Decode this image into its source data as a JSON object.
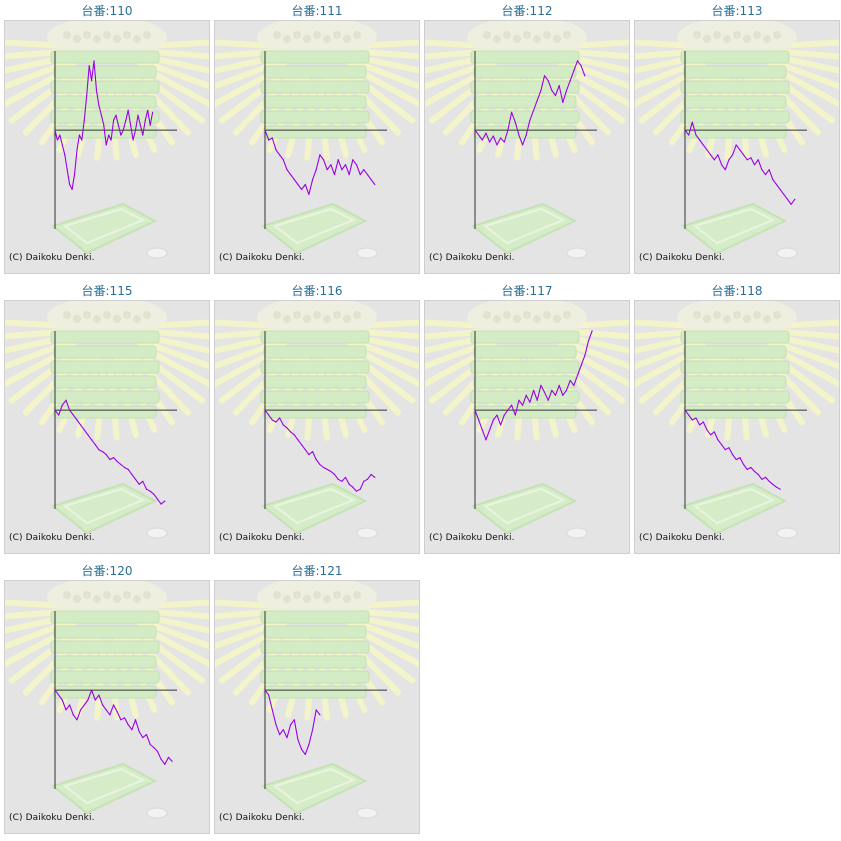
{
  "page": {
    "title_prefix": "台番:"
  },
  "chart_data": [
    {
      "type": "line",
      "title": "台番:110",
      "machine": "110",
      "copyright": "(C) Daikoku Denki.",
      "color": "#9a00e6",
      "xlim": [
        0,
        100
      ],
      "ylim": [
        -100,
        80
      ],
      "x": [
        0,
        2,
        4,
        6,
        8,
        10,
        12,
        14,
        16,
        18,
        20,
        22,
        24,
        26,
        28,
        30,
        32,
        34,
        36,
        38,
        40,
        42,
        44,
        46,
        48,
        50,
        52,
        54,
        56,
        58,
        60,
        62,
        64,
        66,
        68,
        70,
        72,
        74,
        76,
        78,
        80
      ],
      "y": [
        0,
        -10,
        -5,
        -15,
        -25,
        -40,
        -55,
        -60,
        -45,
        -20,
        -5,
        -10,
        10,
        35,
        65,
        50,
        70,
        40,
        25,
        15,
        5,
        -15,
        -5,
        -10,
        10,
        15,
        5,
        -5,
        0,
        10,
        20,
        5,
        -10,
        0,
        15,
        5,
        -5,
        10,
        20,
        5,
        18
      ]
    },
    {
      "type": "line",
      "title": "台番:111",
      "machine": "111",
      "copyright": "(C) Daikoku Denki.",
      "color": "#9a00e6",
      "xlim": [
        0,
        100
      ],
      "ylim": [
        -100,
        80
      ],
      "x": [
        0,
        3,
        6,
        9,
        12,
        15,
        18,
        21,
        24,
        27,
        30,
        33,
        36,
        39,
        42,
        45,
        48,
        51,
        54,
        57,
        60,
        63,
        66,
        69,
        72,
        75,
        78,
        81,
        84,
        87,
        90
      ],
      "y": [
        0,
        -10,
        -8,
        -20,
        -25,
        -30,
        -40,
        -45,
        -50,
        -55,
        -60,
        -55,
        -65,
        -50,
        -40,
        -25,
        -30,
        -40,
        -35,
        -45,
        -30,
        -40,
        -35,
        -45,
        -30,
        -35,
        -45,
        -40,
        -45,
        -50,
        -55
      ]
    },
    {
      "type": "line",
      "title": "台番:112",
      "machine": "112",
      "copyright": "(C) Daikoku Denki.",
      "color": "#9a00e6",
      "xlim": [
        0,
        100
      ],
      "ylim": [
        -100,
        80
      ],
      "x": [
        0,
        3,
        6,
        9,
        12,
        15,
        18,
        21,
        24,
        27,
        30,
        33,
        36,
        39,
        42,
        45,
        48,
        51,
        54,
        57,
        60,
        63,
        66,
        69,
        72,
        75,
        78,
        81,
        84,
        87,
        90
      ],
      "y": [
        0,
        -5,
        -10,
        -3,
        -12,
        -6,
        -15,
        -8,
        -12,
        0,
        18,
        8,
        -5,
        -15,
        -5,
        10,
        20,
        30,
        40,
        55,
        50,
        40,
        35,
        45,
        28,
        40,
        50,
        60,
        70,
        65,
        55
      ]
    },
    {
      "type": "line",
      "title": "台番:113",
      "machine": "113",
      "copyright": "(C) Daikoku Denki.",
      "color": "#9a00e6",
      "xlim": [
        0,
        100
      ],
      "ylim": [
        -100,
        80
      ],
      "x": [
        0,
        3,
        6,
        9,
        12,
        15,
        18,
        21,
        24,
        27,
        30,
        33,
        36,
        39,
        42,
        45,
        48,
        51,
        54,
        57,
        60,
        63,
        66,
        69,
        72,
        75,
        78,
        81,
        84,
        87,
        90
      ],
      "y": [
        0,
        -5,
        8,
        -5,
        -10,
        -15,
        -20,
        -25,
        -30,
        -25,
        -35,
        -40,
        -30,
        -25,
        -15,
        -20,
        -25,
        -30,
        -28,
        -35,
        -30,
        -40,
        -45,
        -40,
        -50,
        -55,
        -60,
        -65,
        -70,
        -75,
        -70
      ]
    },
    {
      "type": "line",
      "title": "台番:115",
      "machine": "115",
      "copyright": "(C) Daikoku Denki.",
      "color": "#9a00e6",
      "xlim": [
        0,
        100
      ],
      "ylim": [
        -100,
        80
      ],
      "x": [
        0,
        3,
        6,
        9,
        12,
        15,
        18,
        21,
        24,
        27,
        30,
        33,
        36,
        39,
        42,
        45,
        48,
        51,
        54,
        57,
        60,
        63,
        66,
        69,
        72,
        75,
        78,
        81,
        84,
        87,
        90
      ],
      "y": [
        0,
        -5,
        5,
        10,
        0,
        -5,
        -10,
        -15,
        -20,
        -25,
        -30,
        -35,
        -40,
        -42,
        -45,
        -50,
        -48,
        -52,
        -55,
        -58,
        -60,
        -65,
        -70,
        -75,
        -72,
        -80,
        -82,
        -85,
        -90,
        -95,
        -92
      ]
    },
    {
      "type": "line",
      "title": "台番:116",
      "machine": "116",
      "copyright": "(C) Daikoku Denki.",
      "color": "#9a00e6",
      "xlim": [
        0,
        100
      ],
      "ylim": [
        -100,
        80
      ],
      "x": [
        0,
        3,
        6,
        9,
        12,
        15,
        18,
        21,
        24,
        27,
        30,
        33,
        36,
        39,
        42,
        45,
        48,
        51,
        54,
        57,
        60,
        63,
        66,
        69,
        72,
        75,
        78,
        81,
        84,
        87,
        90
      ],
      "y": [
        0,
        -5,
        -10,
        -12,
        -8,
        -15,
        -18,
        -22,
        -25,
        -30,
        -35,
        -40,
        -45,
        -42,
        -50,
        -55,
        -58,
        -60,
        -62,
        -65,
        -70,
        -72,
        -68,
        -75,
        -78,
        -82,
        -80,
        -72,
        -70,
        -65,
        -68
      ]
    },
    {
      "type": "line",
      "title": "台番:117",
      "machine": "117",
      "copyright": "(C) Daikoku Denki.",
      "color": "#9a00e6",
      "xlim": [
        0,
        100
      ],
      "ylim": [
        -100,
        80
      ],
      "x": [
        0,
        3,
        6,
        9,
        12,
        15,
        18,
        21,
        24,
        27,
        30,
        33,
        36,
        39,
        42,
        45,
        48,
        51,
        54,
        57,
        60,
        63,
        66,
        69,
        72,
        75,
        78,
        81,
        84,
        87,
        90,
        93,
        96
      ],
      "y": [
        0,
        -10,
        -20,
        -30,
        -20,
        -10,
        -5,
        -15,
        -5,
        0,
        5,
        -5,
        10,
        5,
        15,
        8,
        20,
        10,
        25,
        18,
        10,
        20,
        15,
        25,
        15,
        20,
        30,
        25,
        35,
        45,
        55,
        70,
        80
      ]
    },
    {
      "type": "line",
      "title": "台番:118",
      "machine": "118",
      "copyright": "(C) Daikoku Denki.",
      "color": "#9a00e6",
      "xlim": [
        0,
        100
      ],
      "ylim": [
        -100,
        80
      ],
      "x": [
        0,
        3,
        6,
        9,
        12,
        15,
        18,
        21,
        24,
        27,
        30,
        33,
        36,
        39,
        42,
        45,
        48,
        51,
        54,
        57,
        60,
        63,
        66,
        69,
        72,
        75,
        78
      ],
      "y": [
        0,
        -5,
        -10,
        -8,
        -15,
        -12,
        -20,
        -25,
        -22,
        -30,
        -35,
        -40,
        -38,
        -45,
        -50,
        -48,
        -55,
        -60,
        -58,
        -62,
        -65,
        -70,
        -68,
        -72,
        -75,
        -78,
        -80
      ]
    },
    {
      "type": "line",
      "title": "台番:120",
      "machine": "120",
      "copyright": "(C) Daikoku Denki.",
      "color": "#9a00e6",
      "xlim": [
        0,
        100
      ],
      "ylim": [
        -100,
        80
      ],
      "x": [
        0,
        3,
        6,
        9,
        12,
        15,
        18,
        21,
        24,
        27,
        30,
        33,
        36,
        39,
        42,
        45,
        48,
        51,
        54,
        57,
        60,
        63,
        66,
        69,
        72,
        75,
        78,
        81,
        84,
        87,
        90,
        93,
        96
      ],
      "y": [
        0,
        -5,
        -10,
        -20,
        -15,
        -25,
        -30,
        -20,
        -15,
        -10,
        0,
        -10,
        -5,
        -15,
        -20,
        -25,
        -15,
        -22,
        -30,
        -28,
        -35,
        -40,
        -30,
        -42,
        -48,
        -45,
        -55,
        -58,
        -62,
        -70,
        -75,
        -68,
        -72
      ]
    },
    {
      "type": "line",
      "title": "台番:121",
      "machine": "121",
      "copyright": "(C) Daikoku Denki.",
      "color": "#9a00e6",
      "xlim": [
        0,
        100
      ],
      "ylim": [
        -100,
        80
      ],
      "x": [
        0,
        3,
        6,
        9,
        12,
        15,
        18,
        21,
        24,
        27,
        30,
        33,
        36,
        39,
        42,
        45
      ],
      "y": [
        0,
        -5,
        -20,
        -35,
        -45,
        -40,
        -48,
        -35,
        -30,
        -50,
        -60,
        -65,
        -55,
        -40,
        -20,
        -25
      ]
    }
  ]
}
